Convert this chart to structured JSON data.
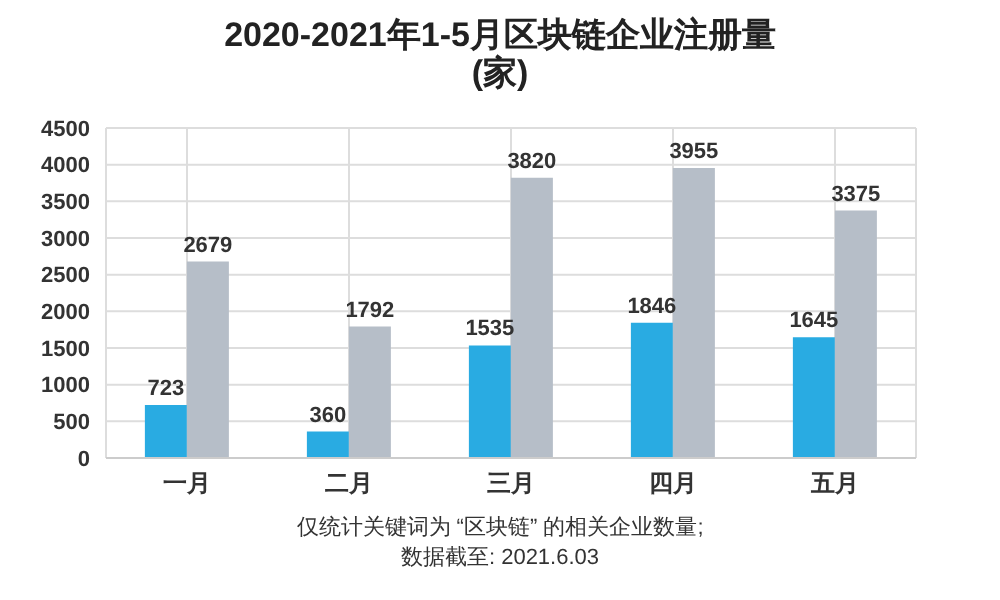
{
  "chart_data": {
    "type": "bar",
    "title": "2020-2021年1-5月区块链企业注册量",
    "subtitle": "(家)",
    "categories": [
      "一月",
      "二月",
      "三月",
      "四月",
      "五月"
    ],
    "series": [
      {
        "color": "#29abe2",
        "values": [
          723,
          360,
          1535,
          1846,
          1645
        ]
      },
      {
        "color": "#b6bec8",
        "values": [
          2679,
          1792,
          3820,
          3955,
          3375
        ]
      }
    ],
    "ylim": [
      0,
      4500
    ],
    "yticks": [
      0,
      500,
      1000,
      1500,
      2000,
      2500,
      3000,
      3500,
      4000,
      4500
    ],
    "grid": true,
    "data_labels": true,
    "legend": false,
    "annotations": [
      "仅统计关键词为 “区块链” 的相关企业数量;",
      "数据截至: 2021.6.03"
    ]
  }
}
